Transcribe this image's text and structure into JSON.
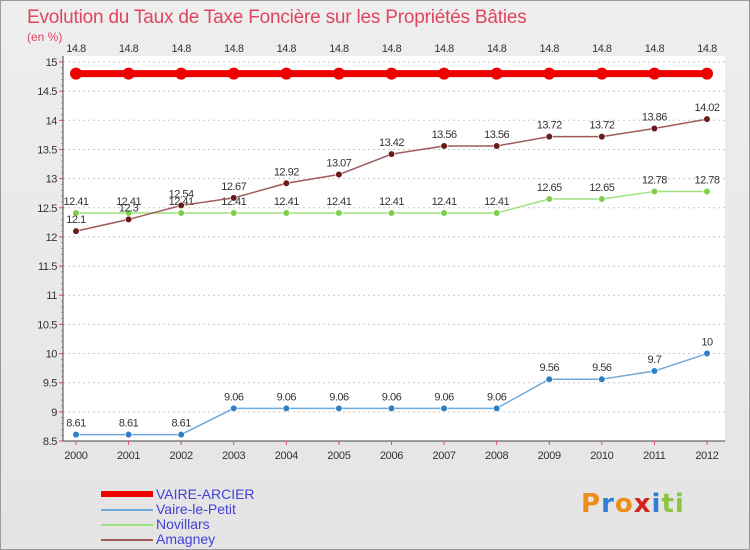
{
  "title": "Evolution du Taux de Taxe Foncière sur les Propriétés Bâties",
  "unit_label": "(en %)",
  "brand": {
    "letters": [
      "P",
      "r",
      "o",
      "x",
      "i",
      "t",
      "i"
    ],
    "colors": [
      "#f08c1a",
      "#2f7fd6",
      "#f08c1a",
      "#d6231c",
      "#2f7fd6",
      "#8cc63f",
      "#8cc63f"
    ]
  },
  "chart_data": {
    "type": "line",
    "title": "Evolution du Taux de Taxe Foncière sur les Propriétés Bâties",
    "ylabel": "(en %)",
    "xlabel": "",
    "x": [
      "2000",
      "2001",
      "2002",
      "2003",
      "2004",
      "2005",
      "2006",
      "2007",
      "2008",
      "2009",
      "2010",
      "2011",
      "2012"
    ],
    "ylim": [
      8.5,
      15
    ],
    "yticks": [
      "8.5",
      "9",
      "9.5",
      "10",
      "10.5",
      "11",
      "11.5",
      "12",
      "12.5",
      "13",
      "13.5",
      "14",
      "14.5",
      "15"
    ],
    "grid": "horizontal dashed",
    "legend": "bottom-left",
    "series": [
      {
        "name": "VAIRE-ARCIER",
        "color": "#ee0000",
        "width": 7,
        "values": [
          14.8,
          14.8,
          14.8,
          14.8,
          14.8,
          14.8,
          14.8,
          14.8,
          14.8,
          14.8,
          14.8,
          14.8,
          14.8
        ],
        "labels": [
          "14.8",
          "14.8",
          "14.8",
          "14.8",
          "14.8",
          "14.8",
          "14.8",
          "14.8",
          "14.8",
          "14.8",
          "14.8",
          "14.8",
          "14.8"
        ]
      },
      {
        "name": "Vaire-le-Petit",
        "color": "#6fa8dc",
        "marker": "#2f7fc4",
        "width": 1.5,
        "values": [
          8.61,
          8.61,
          8.61,
          9.06,
          9.06,
          9.06,
          9.06,
          9.06,
          9.06,
          9.56,
          9.56,
          9.7,
          10
        ],
        "labels": [
          "8.61",
          "8.61",
          "8.61",
          "9.06",
          "9.06",
          "9.06",
          "9.06",
          "9.06",
          "9.06",
          "9.56",
          "9.56",
          "9.7",
          "10"
        ]
      },
      {
        "name": "Novillars",
        "color": "#9fe07f",
        "marker": "#7ccf4a",
        "width": 1.5,
        "values": [
          12.41,
          12.41,
          12.41,
          12.41,
          12.41,
          12.41,
          12.41,
          12.41,
          12.41,
          12.65,
          12.65,
          12.78,
          12.78
        ],
        "labels": [
          "12.41",
          "12.41",
          "12.41",
          "12.41",
          "12.41",
          "12.41",
          "12.41",
          "12.41",
          "12.41",
          "12.65",
          "12.65",
          "12.78",
          "12.78"
        ]
      },
      {
        "name": "Amagney",
        "color": "#a05a5a",
        "marker": "#6b1a1a",
        "width": 1.5,
        "values": [
          12.1,
          12.3,
          12.54,
          12.67,
          12.92,
          13.07,
          13.42,
          13.56,
          13.56,
          13.72,
          13.72,
          13.86,
          14.02
        ],
        "labels": [
          "12.1",
          "12.3",
          "12.54",
          "12.67",
          "12.92",
          "13.07",
          "13.42",
          "13.56",
          "13.56",
          "13.72",
          "13.72",
          "13.86",
          "14.02"
        ]
      }
    ]
  }
}
